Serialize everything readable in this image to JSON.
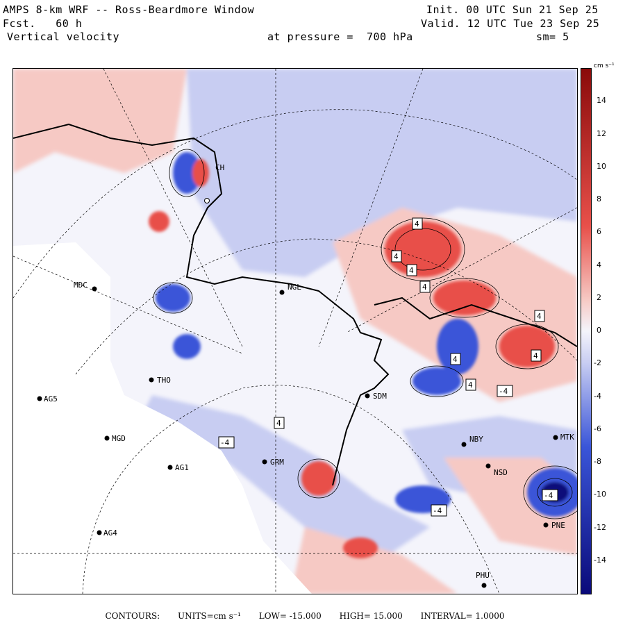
{
  "header": {
    "title": "AMPS 8-km WRF -- Ross-Beardmore Window",
    "forecast": "Fcst.   60 h",
    "variable": "Vertical velocity",
    "pressure_label": "at pressure =  700 hPa",
    "init": "Init. 00 UTC Sun 21 Sep 25",
    "valid": "Valid. 12 UTC Tue 23 Sep 25",
    "smoothing": "sm= 5"
  },
  "colorbar": {
    "units": "cm s⁻¹",
    "ticks": [
      "14",
      "12",
      "10",
      "8",
      "6",
      "4",
      "2",
      "0",
      "-2",
      "-4",
      "-6",
      "-8",
      "-10",
      "-12",
      "-14"
    ],
    "min": -16,
    "max": 16,
    "colors": {
      "neg_dark": "#0a0a7a",
      "neg_mid": "#3a55d8",
      "neg_light": "#c8cdf2",
      "neutral": "#f4f4fb",
      "pos_light": "#f6c9c4",
      "pos_mid": "#e8504a",
      "pos_dark": "#8a0a0a"
    }
  },
  "footer": {
    "contours": "CONTOURS:",
    "units": "UNITS=cm s⁻¹",
    "low": "LOW= -15.000",
    "high": "HIGH=  15.000",
    "interval": "INTERVAL=   1.0000"
  },
  "stations": [
    {
      "id": "MDC",
      "name": "MDC"
    },
    {
      "id": "NGL",
      "name": "NGL"
    },
    {
      "id": "THO",
      "name": "THO"
    },
    {
      "id": "AG5",
      "name": "AG5"
    },
    {
      "id": "MGD",
      "name": "MGD"
    },
    {
      "id": "AG1",
      "name": "AG1"
    },
    {
      "id": "AG4",
      "name": "AG4"
    },
    {
      "id": "SDM",
      "name": "SDM"
    },
    {
      "id": "GRM",
      "name": "GRM"
    },
    {
      "id": "NBY",
      "name": "NBY"
    },
    {
      "id": "NSD",
      "name": "NSD"
    },
    {
      "id": "MTK",
      "name": "MTK"
    },
    {
      "id": "PNE",
      "name": "PNE"
    },
    {
      "id": "PHU",
      "name": "PHU"
    },
    {
      "id": "VCH",
      "name": "CH"
    }
  ],
  "contour_labels": {
    "pos": "4",
    "neg": "-4"
  }
}
